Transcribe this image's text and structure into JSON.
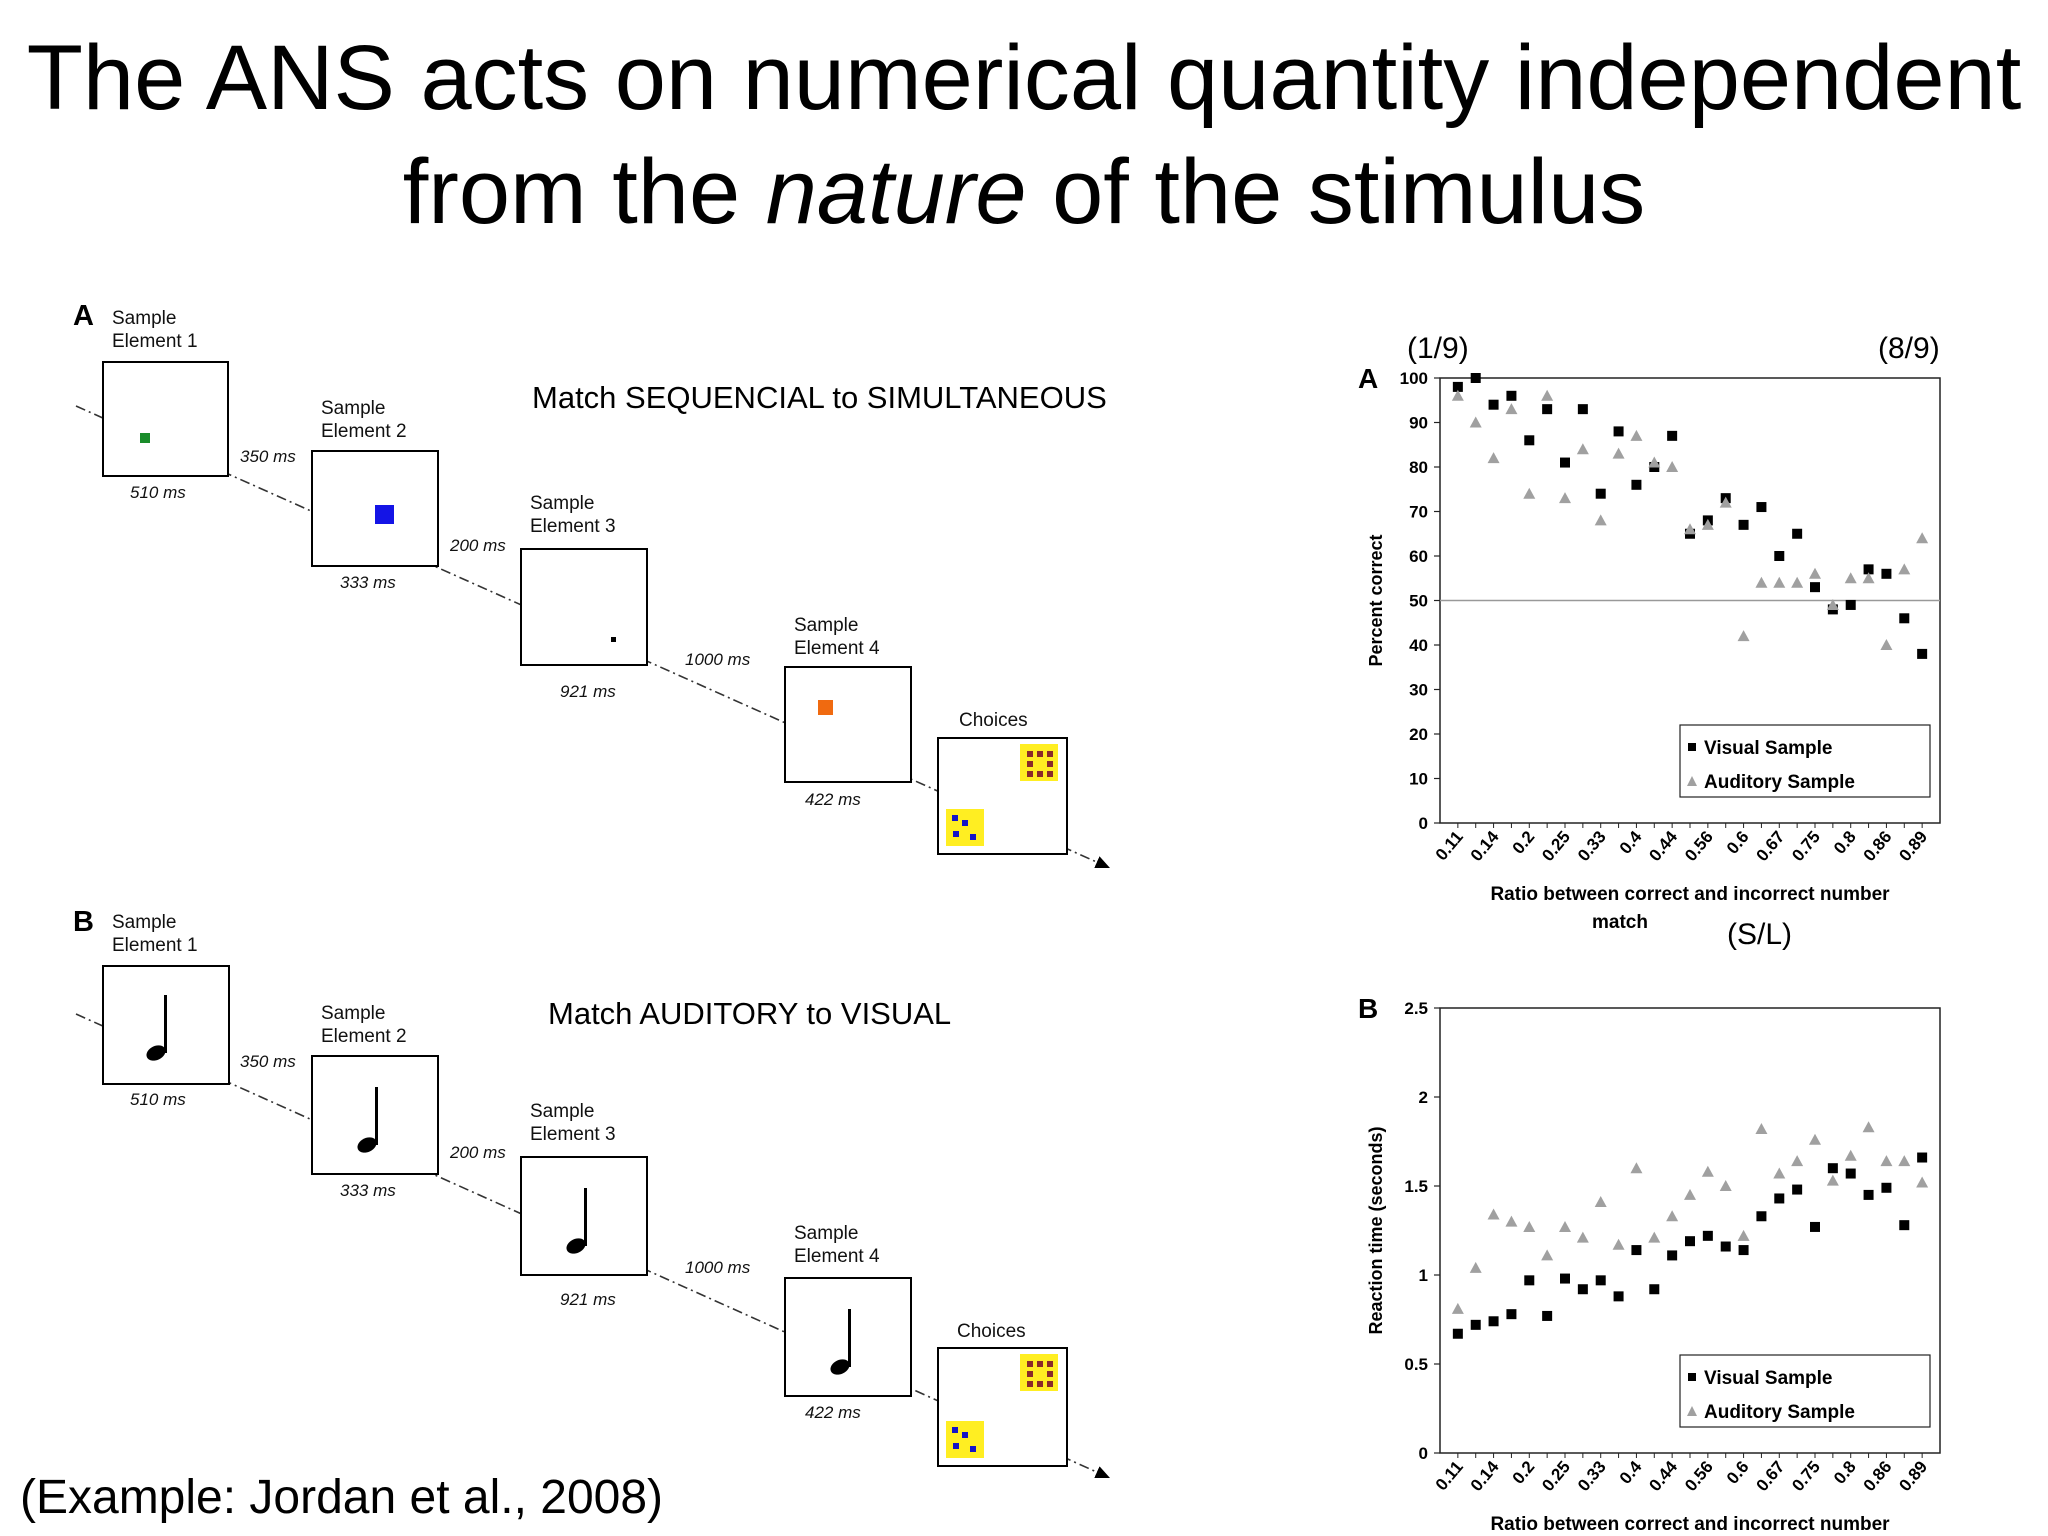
{
  "slide": {
    "title_line1": "The ANS acts on numerical quantity independent",
    "title_line2_pre": "from the ",
    "title_line2_italic": "nature",
    "title_line2_post": " of the stimulus",
    "citation": "(Example: Jordan et al., 2008)"
  },
  "diagram": {
    "panel_a": {
      "letter": "A",
      "caption": "Match SEQUENCIAL to SIMULTANEOUS",
      "elements": [
        "Sample\nElement 1",
        "Sample\nElement 2",
        "Sample\nElement 3",
        "Sample\nElement 4"
      ],
      "durations": [
        "510 ms",
        "333 ms",
        "921 ms",
        "422 ms"
      ],
      "isis": [
        "350 ms",
        "200 ms",
        "1000 ms"
      ],
      "choices": "Choices",
      "colors": {
        "el1": "#1a8c2a",
        "el2": "#1414e6",
        "el3": "#000000",
        "el4": "#f06a10"
      }
    },
    "panel_b": {
      "letter": "B",
      "caption": "Match AUDITORY to VISUAL",
      "elements": [
        "Sample\nElement 1",
        "Sample\nElement 2",
        "Sample\nElement 3",
        "Sample\nElement 4"
      ],
      "durations": [
        "510 ms",
        "333 ms",
        "921 ms",
        "422 ms"
      ],
      "isis": [
        "350 ms",
        "200 ms",
        "1000 ms"
      ],
      "choices": "Choices"
    }
  },
  "overlays": {
    "left_ratio": "(1/9)",
    "right_ratio": "(8/9)",
    "sl": "(S/L)"
  },
  "chart_data": [
    {
      "type": "scatter",
      "panel": "A",
      "title": "",
      "xlabel": "Ratio between correct and incorrect number match",
      "ylabel": "Percent correct",
      "ylim": [
        0,
        100
      ],
      "yticks": [
        0,
        10,
        20,
        30,
        40,
        50,
        60,
        70,
        80,
        90,
        100
      ],
      "categories": [
        "0.11",
        "0.14",
        "0.2",
        "0.25",
        "0.33",
        "0.4",
        "0.44",
        "0.56",
        "0.6",
        "0.67",
        "0.75",
        "0.8",
        "0.86",
        "0.89"
      ],
      "reference_line": 50,
      "legend_position": "lower-right",
      "series": [
        {
          "name": "Visual Sample",
          "marker": "square",
          "color": "#000000",
          "points": [
            [
              1,
              98
            ],
            [
              2,
              100
            ],
            [
              3,
              94
            ],
            [
              4,
              96
            ],
            [
              5,
              86
            ],
            [
              6,
              93
            ],
            [
              7,
              81
            ],
            [
              8,
              93
            ],
            [
              9,
              74
            ],
            [
              10,
              88
            ],
            [
              11,
              76
            ],
            [
              12,
              80
            ],
            [
              13,
              87
            ],
            [
              14,
              65
            ],
            [
              15,
              68
            ],
            [
              16,
              73
            ],
            [
              17,
              67
            ],
            [
              18,
              71
            ],
            [
              19,
              60
            ],
            [
              20,
              65
            ],
            [
              21,
              53
            ],
            [
              22,
              48
            ],
            [
              23,
              49
            ],
            [
              24,
              57
            ],
            [
              25,
              56
            ],
            [
              26,
              46
            ],
            [
              27,
              38
            ]
          ]
        },
        {
          "name": "Auditory Sample",
          "marker": "triangle",
          "color": "#a0a0a0",
          "points": [
            [
              1,
              96
            ],
            [
              2,
              90
            ],
            [
              3,
              82
            ],
            [
              4,
              93
            ],
            [
              5,
              74
            ],
            [
              6,
              96
            ],
            [
              7,
              73
            ],
            [
              8,
              84
            ],
            [
              9,
              68
            ],
            [
              10,
              83
            ],
            [
              11,
              87
            ],
            [
              12,
              81
            ],
            [
              13,
              80
            ],
            [
              14,
              66
            ],
            [
              15,
              67
            ],
            [
              16,
              72
            ],
            [
              17,
              42
            ],
            [
              18,
              54
            ],
            [
              19,
              54
            ],
            [
              20,
              54
            ],
            [
              21,
              56
            ],
            [
              22,
              49
            ],
            [
              23,
              55
            ],
            [
              24,
              55
            ],
            [
              25,
              40
            ],
            [
              26,
              57
            ],
            [
              27,
              64
            ]
          ]
        }
      ]
    },
    {
      "type": "scatter",
      "panel": "B",
      "title": "",
      "xlabel": "Ratio between correct and incorrect number match",
      "ylabel": "Reaction time (seconds)",
      "ylim": [
        0,
        2.5
      ],
      "yticks": [
        0,
        0.5,
        1,
        1.5,
        2,
        2.5
      ],
      "categories": [
        "0.11",
        "0.14",
        "0.2",
        "0.25",
        "0.33",
        "0.4",
        "0.44",
        "0.56",
        "0.6",
        "0.67",
        "0.75",
        "0.8",
        "0.86",
        "0.89"
      ],
      "legend_position": "lower-right",
      "series": [
        {
          "name": "Visual Sample",
          "marker": "square",
          "color": "#000000",
          "points": [
            [
              1,
              0.67
            ],
            [
              2,
              0.72
            ],
            [
              3,
              0.74
            ],
            [
              4,
              0.78
            ],
            [
              5,
              0.97
            ],
            [
              6,
              0.77
            ],
            [
              7,
              0.98
            ],
            [
              8,
              0.92
            ],
            [
              9,
              0.97
            ],
            [
              10,
              0.88
            ],
            [
              11,
              1.14
            ],
            [
              12,
              0.92
            ],
            [
              13,
              1.11
            ],
            [
              14,
              1.19
            ],
            [
              15,
              1.22
            ],
            [
              16,
              1.16
            ],
            [
              17,
              1.14
            ],
            [
              18,
              1.33
            ],
            [
              19,
              1.43
            ],
            [
              20,
              1.48
            ],
            [
              21,
              1.27
            ],
            [
              22,
              1.6
            ],
            [
              23,
              1.57
            ],
            [
              24,
              1.45
            ],
            [
              25,
              1.49
            ],
            [
              26,
              1.28
            ],
            [
              27,
              1.66
            ]
          ]
        },
        {
          "name": "Auditory Sample",
          "marker": "triangle",
          "color": "#a0a0a0",
          "points": [
            [
              1,
              0.81
            ],
            [
              2,
              1.04
            ],
            [
              3,
              1.34
            ],
            [
              4,
              1.3
            ],
            [
              5,
              1.27
            ],
            [
              6,
              1.11
            ],
            [
              7,
              1.27
            ],
            [
              8,
              1.21
            ],
            [
              9,
              1.41
            ],
            [
              10,
              1.17
            ],
            [
              11,
              1.6
            ],
            [
              12,
              1.21
            ],
            [
              13,
              1.33
            ],
            [
              14,
              1.45
            ],
            [
              15,
              1.58
            ],
            [
              16,
              1.5
            ],
            [
              17,
              1.22
            ],
            [
              18,
              1.82
            ],
            [
              19,
              1.57
            ],
            [
              20,
              1.64
            ],
            [
              21,
              1.76
            ],
            [
              22,
              1.53
            ],
            [
              23,
              1.67
            ],
            [
              24,
              1.83
            ],
            [
              25,
              1.64
            ],
            [
              26,
              1.64
            ],
            [
              27,
              1.52
            ]
          ]
        }
      ]
    }
  ]
}
